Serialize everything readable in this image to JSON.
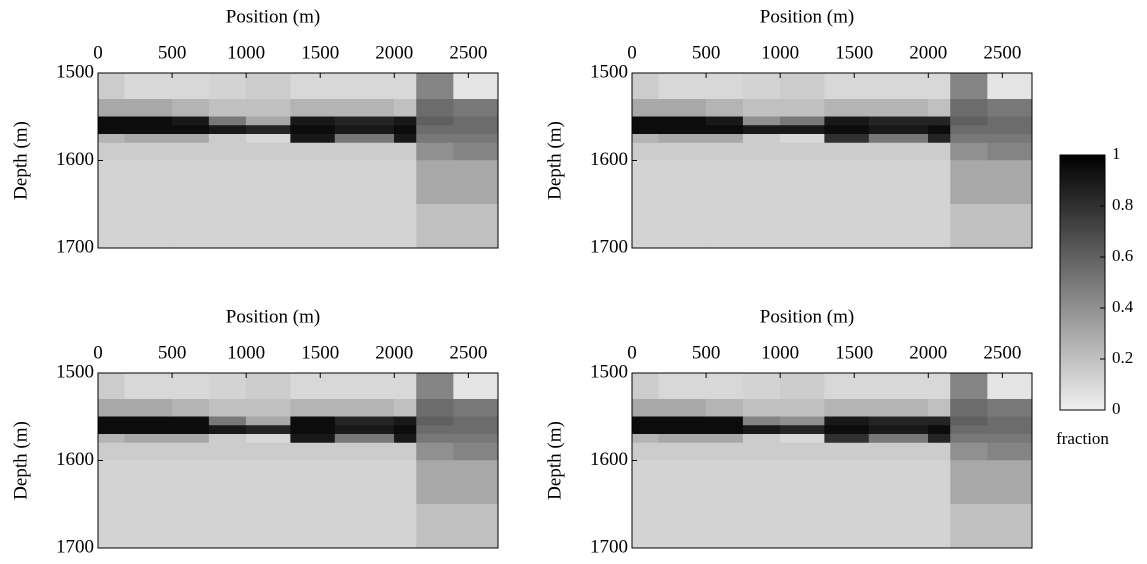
{
  "chart_data": [
    {
      "type": "heatmap",
      "xlabel": "Position (m)",
      "ylabel": "Depth (m)",
      "xlim": [
        0,
        2700
      ],
      "ylim": [
        1500,
        1700
      ],
      "invert_y": true,
      "xticks": [
        0,
        500,
        1000,
        1500,
        2000,
        2500
      ],
      "yticks": [
        1500,
        1600,
        1700
      ],
      "x_edges": [
        0,
        180,
        500,
        750,
        1000,
        1300,
        1600,
        2000,
        2150,
        2400,
        2700
      ],
      "y_edges": [
        1500,
        1530,
        1550,
        1560,
        1570,
        1580,
        1600,
        1650,
        1700
      ],
      "z": [
        [
          0.15,
          0.1,
          0.1,
          0.12,
          0.15,
          0.1,
          0.1,
          0.1,
          0.45,
          0.05
        ],
        [
          0.3,
          0.3,
          0.25,
          0.2,
          0.2,
          0.25,
          0.25,
          0.2,
          0.55,
          0.5
        ],
        [
          0.95,
          0.95,
          0.9,
          0.5,
          0.3,
          0.9,
          0.85,
          0.9,
          0.6,
          0.55
        ],
        [
          0.95,
          0.95,
          0.95,
          0.9,
          0.85,
          0.95,
          0.9,
          0.95,
          0.55,
          0.55
        ],
        [
          0.25,
          0.3,
          0.3,
          0.15,
          0.1,
          0.9,
          0.5,
          0.9,
          0.5,
          0.5
        ],
        [
          0.15,
          0.15,
          0.15,
          0.15,
          0.15,
          0.15,
          0.15,
          0.15,
          0.4,
          0.45
        ],
        [
          0.12,
          0.12,
          0.12,
          0.12,
          0.12,
          0.12,
          0.12,
          0.12,
          0.3,
          0.3
        ],
        [
          0.12,
          0.12,
          0.12,
          0.12,
          0.12,
          0.12,
          0.12,
          0.12,
          0.2,
          0.2
        ]
      ]
    },
    {
      "type": "heatmap",
      "xlabel": "Position (m)",
      "ylabel": "Depth (m)",
      "xlim": [
        0,
        2700
      ],
      "ylim": [
        1500,
        1700
      ],
      "invert_y": true,
      "xticks": [
        0,
        500,
        1000,
        1500,
        2000,
        2500
      ],
      "yticks": [
        1500,
        1600,
        1700
      ],
      "x_edges": [
        0,
        180,
        500,
        750,
        1000,
        1300,
        1600,
        2000,
        2150,
        2400,
        2700
      ],
      "y_edges": [
        1500,
        1530,
        1550,
        1560,
        1570,
        1580,
        1600,
        1650,
        1700
      ],
      "z": [
        [
          0.15,
          0.1,
          0.1,
          0.12,
          0.15,
          0.1,
          0.1,
          0.1,
          0.45,
          0.05
        ],
        [
          0.3,
          0.3,
          0.25,
          0.2,
          0.2,
          0.25,
          0.25,
          0.2,
          0.55,
          0.5
        ],
        [
          0.95,
          0.95,
          0.9,
          0.4,
          0.5,
          0.9,
          0.85,
          0.85,
          0.6,
          0.55
        ],
        [
          0.95,
          0.95,
          0.95,
          0.9,
          0.9,
          0.95,
          0.9,
          0.95,
          0.55,
          0.55
        ],
        [
          0.25,
          0.3,
          0.3,
          0.15,
          0.1,
          0.8,
          0.5,
          0.85,
          0.5,
          0.5
        ],
        [
          0.15,
          0.15,
          0.15,
          0.15,
          0.15,
          0.15,
          0.15,
          0.15,
          0.4,
          0.45
        ],
        [
          0.12,
          0.12,
          0.12,
          0.12,
          0.12,
          0.12,
          0.12,
          0.12,
          0.3,
          0.3
        ],
        [
          0.12,
          0.12,
          0.12,
          0.12,
          0.12,
          0.12,
          0.12,
          0.12,
          0.2,
          0.2
        ]
      ]
    },
    {
      "type": "heatmap",
      "xlabel": "Position (m)",
      "ylabel": "Depth (m)",
      "xlim": [
        0,
        2700
      ],
      "ylim": [
        1500,
        1700
      ],
      "invert_y": true,
      "xticks": [
        0,
        500,
        1000,
        1500,
        2000,
        2500
      ],
      "yticks": [
        1500,
        1600,
        1700
      ],
      "x_edges": [
        0,
        180,
        500,
        750,
        1000,
        1300,
        1600,
        2000,
        2150,
        2400,
        2700
      ],
      "y_edges": [
        1500,
        1530,
        1550,
        1560,
        1570,
        1580,
        1600,
        1650,
        1700
      ],
      "z": [
        [
          0.15,
          0.1,
          0.1,
          0.12,
          0.15,
          0.1,
          0.1,
          0.1,
          0.45,
          0.05
        ],
        [
          0.3,
          0.3,
          0.25,
          0.2,
          0.2,
          0.25,
          0.25,
          0.2,
          0.55,
          0.5
        ],
        [
          0.95,
          0.95,
          0.95,
          0.5,
          0.3,
          0.95,
          0.85,
          0.9,
          0.6,
          0.55
        ],
        [
          0.95,
          0.95,
          0.95,
          0.9,
          0.85,
          0.95,
          0.9,
          0.95,
          0.55,
          0.55
        ],
        [
          0.25,
          0.3,
          0.3,
          0.15,
          0.1,
          0.9,
          0.5,
          0.9,
          0.5,
          0.5
        ],
        [
          0.15,
          0.15,
          0.15,
          0.15,
          0.15,
          0.15,
          0.15,
          0.15,
          0.4,
          0.45
        ],
        [
          0.12,
          0.12,
          0.12,
          0.12,
          0.12,
          0.12,
          0.12,
          0.12,
          0.3,
          0.3
        ],
        [
          0.12,
          0.12,
          0.12,
          0.12,
          0.12,
          0.12,
          0.12,
          0.12,
          0.2,
          0.2
        ]
      ]
    },
    {
      "type": "heatmap",
      "xlabel": "Position (m)",
      "ylabel": "Depth (m)",
      "xlim": [
        0,
        2700
      ],
      "ylim": [
        1500,
        1700
      ],
      "invert_y": true,
      "xticks": [
        0,
        500,
        1000,
        1500,
        2000,
        2500
      ],
      "yticks": [
        1500,
        1600,
        1700
      ],
      "x_edges": [
        0,
        180,
        500,
        750,
        1000,
        1300,
        1600,
        2000,
        2150,
        2400,
        2700
      ],
      "y_edges": [
        1500,
        1530,
        1550,
        1560,
        1570,
        1580,
        1600,
        1650,
        1700
      ],
      "z": [
        [
          0.15,
          0.1,
          0.1,
          0.12,
          0.15,
          0.1,
          0.1,
          0.1,
          0.45,
          0.05
        ],
        [
          0.3,
          0.3,
          0.25,
          0.2,
          0.2,
          0.25,
          0.25,
          0.2,
          0.55,
          0.5
        ],
        [
          0.95,
          0.95,
          0.95,
          0.45,
          0.4,
          0.9,
          0.85,
          0.85,
          0.6,
          0.55
        ],
        [
          0.95,
          0.95,
          0.95,
          0.9,
          0.85,
          0.95,
          0.9,
          0.95,
          0.55,
          0.55
        ],
        [
          0.25,
          0.3,
          0.3,
          0.15,
          0.1,
          0.8,
          0.5,
          0.85,
          0.5,
          0.5
        ],
        [
          0.15,
          0.15,
          0.15,
          0.15,
          0.15,
          0.15,
          0.15,
          0.15,
          0.4,
          0.45
        ],
        [
          0.12,
          0.12,
          0.12,
          0.12,
          0.12,
          0.12,
          0.12,
          0.12,
          0.3,
          0.3
        ],
        [
          0.12,
          0.12,
          0.12,
          0.12,
          0.12,
          0.12,
          0.12,
          0.12,
          0.2,
          0.2
        ]
      ]
    }
  ],
  "colorbar": {
    "label": "fraction",
    "lim": [
      0,
      1
    ],
    "ticks": [
      0,
      0.2,
      0.4,
      0.6,
      0.8,
      1
    ],
    "colors": [
      "#f0f0f0",
      "#000000"
    ]
  }
}
